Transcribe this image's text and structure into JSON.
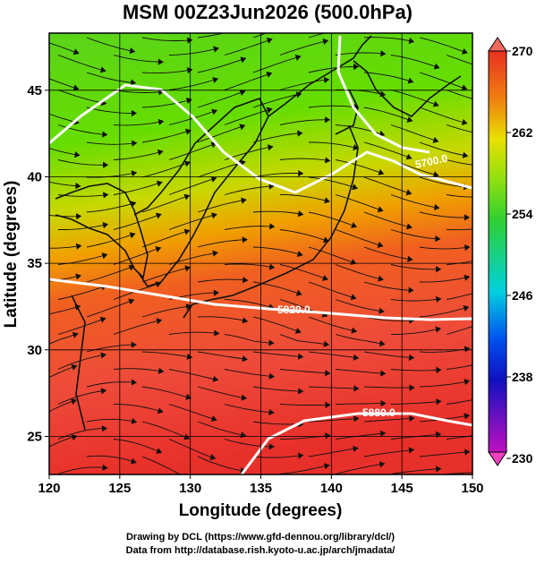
{
  "chart_data": {
    "type": "map",
    "title": "MSM 00Z23Jun2026 (500.0hPa)",
    "x_label": "Longitude (degrees)",
    "y_label": "Latitude  (degrees)",
    "xlim": [
      120,
      150
    ],
    "xticks": [
      120,
      125,
      130,
      135,
      140,
      145,
      150
    ],
    "ylim": [
      22.8,
      48.3
    ],
    "yticks": [
      25,
      30,
      35,
      40,
      45
    ],
    "grid": true,
    "colorbar": {
      "lim": [
        230,
        270
      ],
      "ticks": [
        230,
        238,
        246,
        254,
        262,
        270
      ]
    },
    "contour_labels": [
      "5700.0",
      "5820.0",
      "5880.0"
    ],
    "footer": [
      "Drawing by DCL (https://www.gfd-dennou.org/library/dcl/)",
      "Data from http://database.rish.kyoto-u.ac.jp/arch/jmadata/"
    ]
  }
}
